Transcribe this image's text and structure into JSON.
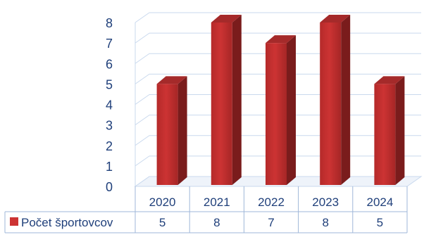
{
  "chart_data": {
    "type": "bar",
    "title": "",
    "xlabel": "",
    "ylabel": "",
    "categories": [
      "2020",
      "2021",
      "2022",
      "2023",
      "2024"
    ],
    "series": [
      {
        "name": "Počet športovcov",
        "values": [
          5,
          8,
          7,
          8,
          5
        ]
      }
    ],
    "ylim": [
      0,
      8
    ],
    "yticks": [
      "0",
      "1",
      "2",
      "3",
      "4",
      "5",
      "6",
      "7",
      "8"
    ],
    "grid": true,
    "legend": "data-table-left",
    "data_table": true,
    "colors": {
      "bar_front": "#cc3333",
      "bar_side": "#7a1c1c",
      "bar_top": "#a52a2a",
      "grid": "#c9d9ee",
      "axis_text": "#1f3f7a",
      "table_border": "#9fb7d8",
      "table_text": "#1f3f7a"
    }
  }
}
